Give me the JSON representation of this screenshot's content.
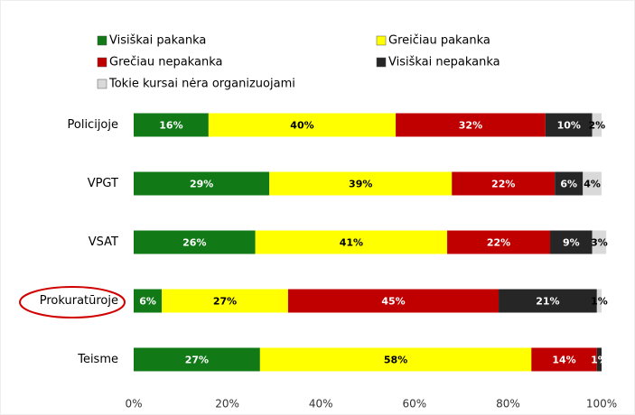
{
  "chart_data": {
    "type": "stacked_barh",
    "categories": [
      "Policijoje",
      "VPGT",
      "VSAT",
      "Prokuratūroje",
      "Teisme"
    ],
    "series": [
      {
        "name": "Visiškai pakanka",
        "color": "#117a17",
        "label_color": "#ffffff",
        "values": [
          16,
          29,
          26,
          6,
          27
        ],
        "value_labels": [
          "16%",
          "29%",
          "26%",
          "6%",
          "27%"
        ]
      },
      {
        "name": "Greičiau pakanka",
        "color": "#ffff00",
        "label_color": "#000000",
        "values": [
          40,
          39,
          41,
          27,
          58
        ],
        "value_labels": [
          "40%",
          "39%",
          "41%",
          "27%",
          "58%"
        ]
      },
      {
        "name": "Grečiau nepakanka",
        "color": "#c00000",
        "label_color": "#ffffff",
        "values": [
          32,
          22,
          22,
          45,
          14
        ],
        "value_labels": [
          "32%",
          "22%",
          "22%",
          "45%",
          "14%"
        ]
      },
      {
        "name": "Visiškai nepakanka",
        "color": "#262626",
        "label_color": "#ffffff",
        "values": [
          10,
          6,
          9,
          21,
          1
        ],
        "value_labels": [
          "10%",
          "6%",
          "9%",
          "21%",
          "1%"
        ]
      },
      {
        "name": "Tokie kursai nėra organizuojami",
        "color": "#d9d9d9",
        "label_color": "#000000",
        "values": [
          2,
          4,
          3,
          1,
          0
        ],
        "value_labels": [
          "2%",
          "4%",
          "3%",
          "1%",
          null
        ]
      }
    ],
    "xlim": [
      0,
      100
    ],
    "xticks": [
      {
        "value": 0,
        "label": "0%"
      },
      {
        "value": 20,
        "label": "20%"
      },
      {
        "value": 40,
        "label": "40%"
      },
      {
        "value": 60,
        "label": "60%"
      },
      {
        "value": 80,
        "label": "80%"
      },
      {
        "value": 100,
        "label": "100%"
      }
    ],
    "grid": false,
    "legend": "top"
  }
}
